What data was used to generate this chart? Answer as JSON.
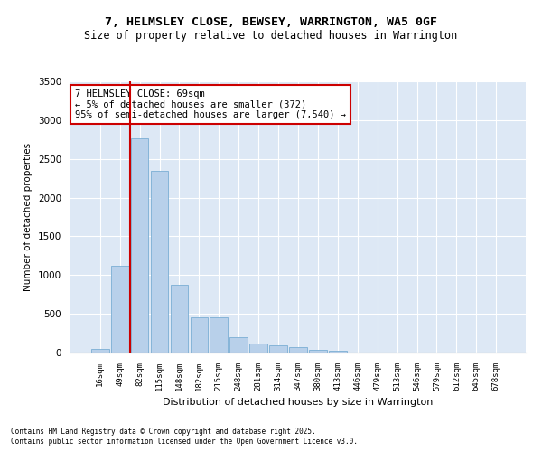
{
  "title": "7, HELMSLEY CLOSE, BEWSEY, WARRINGTON, WA5 0GF",
  "subtitle": "Size of property relative to detached houses in Warrington",
  "xlabel": "Distribution of detached houses by size in Warrington",
  "ylabel": "Number of detached properties",
  "bar_color": "#b8d0ea",
  "bar_edge_color": "#7aaed4",
  "background_color": "#dde8f5",
  "grid_color": "#ffffff",
  "vline_color": "#cc0000",
  "annotation_text": "7 HELMSLEY CLOSE: 69sqm\n← 5% of detached houses are smaller (372)\n95% of semi-detached houses are larger (7,540) →",
  "annotation_box_facecolor": "white",
  "annotation_box_edgecolor": "#cc0000",
  "categories": [
    "16sqm",
    "49sqm",
    "82sqm",
    "115sqm",
    "148sqm",
    "182sqm",
    "215sqm",
    "248sqm",
    "281sqm",
    "314sqm",
    "347sqm",
    "380sqm",
    "413sqm",
    "446sqm",
    "479sqm",
    "513sqm",
    "546sqm",
    "579sqm",
    "612sqm",
    "645sqm",
    "678sqm"
  ],
  "values": [
    50,
    1120,
    2770,
    2340,
    880,
    450,
    450,
    200,
    115,
    90,
    65,
    35,
    20,
    5,
    4,
    2,
    2,
    1,
    0,
    0,
    0
  ],
  "ylim": [
    0,
    3500
  ],
  "yticks": [
    0,
    500,
    1000,
    1500,
    2000,
    2500,
    3000,
    3500
  ],
  "vline_bin_index": 1,
  "footer1": "Contains HM Land Registry data © Crown copyright and database right 2025.",
  "footer2": "Contains public sector information licensed under the Open Government Licence v3.0."
}
